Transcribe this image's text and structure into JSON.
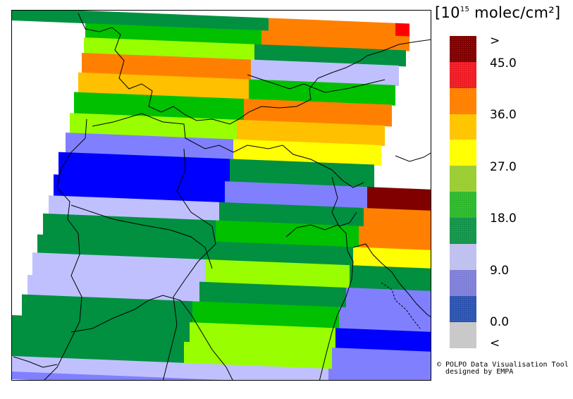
{
  "legend": {
    "title_prefix": "[10",
    "title_exp": "15",
    "title_suffix": " molec/cm²]",
    "swatches": [
      {
        "color": "#7f0000"
      },
      {
        "color": "#ee1c24"
      },
      {
        "color": "#ff7f00"
      },
      {
        "color": "#ffc400"
      },
      {
        "color": "#ffff00"
      },
      {
        "color": "#9acd32"
      },
      {
        "color": "#2eb82e"
      },
      {
        "color": "#13944a"
      },
      {
        "color": "#c0c0ee"
      },
      {
        "color": "#7f7fd8"
      },
      {
        "color": "#2c54b0"
      },
      {
        "color": "#c8c8c8"
      }
    ],
    "labels": [
      ">",
      "45.0",
      "36.0",
      "27.0",
      "18.0",
      "9.0",
      "0.0",
      "<"
    ]
  },
  "credit": {
    "line1": "© POLPO Data Visualisation Tool",
    "line2": "designed by EMPA"
  },
  "map_colors": {
    "dark_red": "#800000",
    "red": "#ff0000",
    "orange": "#ff8000",
    "amber": "#ffc000",
    "yellow": "#ffff00",
    "lime": "#99ff00",
    "light_green": "#00c000",
    "dark_green": "#009040",
    "lavender": "#c0c0ff",
    "periwinkle": "#8080ff",
    "blue": "#0000ff",
    "boundary": "#000000"
  }
}
